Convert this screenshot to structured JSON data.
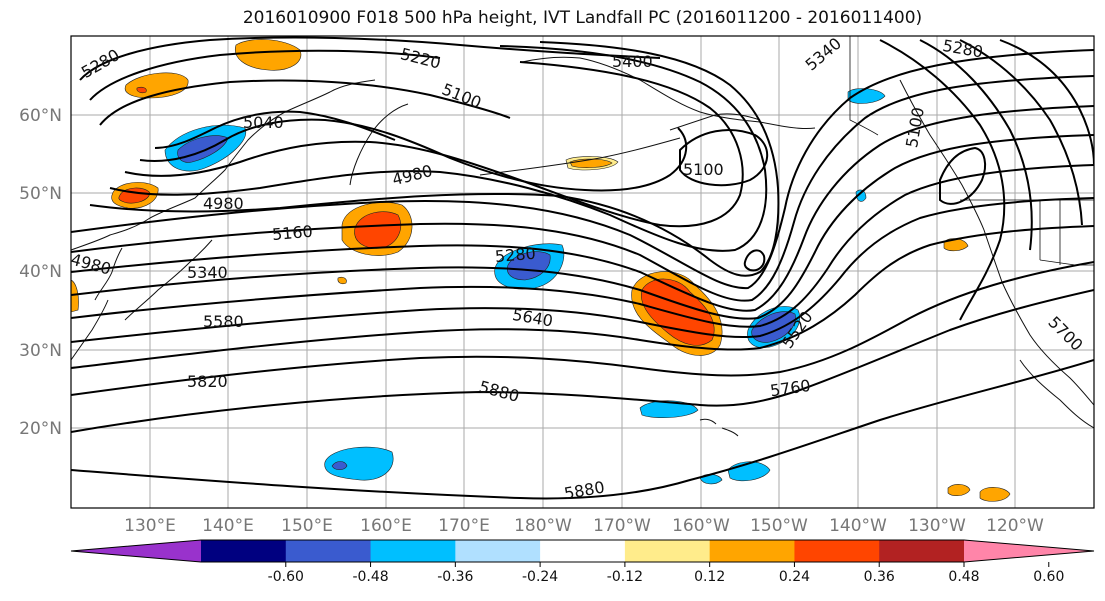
{
  "title": "2016010900 F018 500 hPa height, IVT Landfall PC (2016011200 - 2016011400)",
  "lat_labels": [
    "60°N",
    "50°N",
    "40°N",
    "30°N",
    "20°N"
  ],
  "lon_labels": [
    "130°E",
    "140°E",
    "150°E",
    "160°E",
    "170°E",
    "180°W",
    "170°W",
    "160°W",
    "150°W",
    "140°W",
    "130°W",
    "120°W"
  ],
  "contour_labels": [
    "5280",
    "5220",
    "5400",
    "5100",
    "5040",
    "4980",
    "4980",
    "5100",
    "5160",
    "5280",
    "5340",
    "5580",
    "5640",
    "5820",
    "5880",
    "5880",
    "5760",
    "5520",
    "5280",
    "5340",
    "5100",
    "4980",
    "5700"
  ],
  "colorbar": {
    "ticks": [
      "-0.60",
      "-0.48",
      "-0.36",
      "-0.24",
      "-0.12",
      "0.12",
      "0.24",
      "0.36",
      "0.48",
      "0.60"
    ],
    "colors": [
      "#9932cc",
      "#000080",
      "#3a5bcf",
      "#00bfff",
      "#b0e0ff",
      "#ffffff",
      "#ffec8b",
      "#ffa500",
      "#ff4500",
      "#b22222",
      "#ff85a9"
    ]
  }
}
